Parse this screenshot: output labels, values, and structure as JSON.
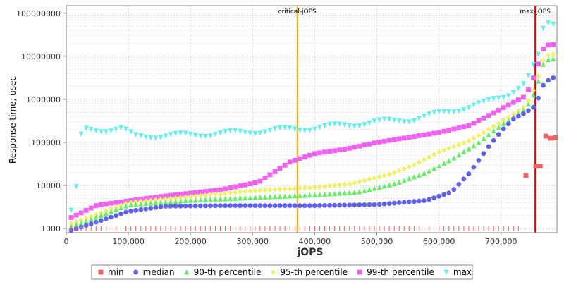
{
  "chart_data": {
    "type": "scatter",
    "xlabel": "jOPS",
    "ylabel": "Response time, usec",
    "log_y": true,
    "xlim": [
      0,
      790000
    ],
    "ylim": [
      800,
      150000000
    ],
    "x_ticks": [
      0,
      100000,
      200000,
      300000,
      400000,
      500000,
      600000,
      700000
    ],
    "x_tick_labels": [
      "0",
      "100,000",
      "200,000",
      "300,000",
      "400,000",
      "500,000",
      "600,000",
      "700,000"
    ],
    "y_ticks": [
      1000,
      10000,
      100000,
      1000000,
      10000000,
      100000000
    ],
    "y_tick_labels": [
      "1000",
      "10000",
      "100000",
      "1000000",
      "10000000",
      "100000000"
    ],
    "grid": true,
    "legend_position": "bottom",
    "vlines": [
      {
        "x": 372000,
        "label": "critical-jOPS",
        "color": "#ffb000"
      },
      {
        "x": 755000,
        "label": "max-jOPS",
        "color": "#e00000"
      }
    ],
    "series": [
      {
        "name": "min",
        "marker": "square",
        "color": "#f06060",
        "points": [
          [
            740000,
            17000
          ],
          [
            756000,
            28000
          ],
          [
            763000,
            28000
          ],
          [
            772000,
            140000
          ],
          [
            780000,
            125000
          ],
          [
            788000,
            128000
          ]
        ]
      },
      {
        "name": "median",
        "marker": "circle",
        "color": "#6060f0",
        "anchors": [
          [
            8000,
            900
          ],
          [
            100000,
            2500
          ],
          [
            160000,
            3300
          ],
          [
            250000,
            3400
          ],
          [
            400000,
            3400
          ],
          [
            500000,
            3600
          ],
          [
            580000,
            4500
          ],
          [
            620000,
            7000
          ],
          [
            650000,
            20000
          ],
          [
            680000,
            80000
          ],
          [
            700000,
            180000
          ],
          [
            720000,
            350000
          ],
          [
            740000,
            500000
          ],
          [
            755000,
            700000
          ],
          [
            770000,
            2500000
          ],
          [
            790000,
            3500000
          ]
        ]
      },
      {
        "name": "90-th percentile",
        "marker": "triangle-up",
        "color": "#60f060",
        "anchors": [
          [
            8000,
            1100
          ],
          [
            100000,
            3500
          ],
          [
            200000,
            4500
          ],
          [
            300000,
            5200
          ],
          [
            400000,
            6000
          ],
          [
            470000,
            7000
          ],
          [
            530000,
            11000
          ],
          [
            580000,
            20000
          ],
          [
            620000,
            40000
          ],
          [
            660000,
            90000
          ],
          [
            700000,
            250000
          ],
          [
            740000,
            600000
          ],
          [
            755000,
            1500000
          ],
          [
            770000,
            8000000
          ],
          [
            790000,
            9000000
          ]
        ]
      },
      {
        "name": "95-th percentile",
        "marker": "diamond",
        "color": "#f0f060",
        "anchors": [
          [
            8000,
            1300
          ],
          [
            100000,
            4000
          ],
          [
            200000,
            5500
          ],
          [
            300000,
            7500
          ],
          [
            400000,
            9000
          ],
          [
            460000,
            11000
          ],
          [
            520000,
            18000
          ],
          [
            560000,
            30000
          ],
          [
            600000,
            60000
          ],
          [
            650000,
            110000
          ],
          [
            700000,
            300000
          ],
          [
            740000,
            700000
          ],
          [
            755000,
            2000000
          ],
          [
            770000,
            10000000
          ],
          [
            790000,
            12000000
          ]
        ]
      },
      {
        "name": "99-th percentile",
        "marker": "square",
        "color": "#f060f0",
        "anchors": [
          [
            8000,
            1800
          ],
          [
            50000,
            3500
          ],
          [
            150000,
            5500
          ],
          [
            250000,
            8000
          ],
          [
            310000,
            12000
          ],
          [
            360000,
            35000
          ],
          [
            400000,
            55000
          ],
          [
            450000,
            70000
          ],
          [
            500000,
            100000
          ],
          [
            550000,
            130000
          ],
          [
            600000,
            170000
          ],
          [
            650000,
            250000
          ],
          [
            700000,
            600000
          ],
          [
            740000,
            1200000
          ],
          [
            755000,
            4000000
          ],
          [
            770000,
            18000000
          ],
          [
            790000,
            19000000
          ]
        ]
      },
      {
        "name": "max",
        "marker": "triangle-down",
        "color": "#60f0f0",
        "anchors": [
          [
            8000,
            2500
          ],
          [
            15000,
            6000
          ],
          [
            25000,
            200000
          ],
          [
            60000,
            200000
          ],
          [
            90000,
            210000
          ],
          [
            110000,
            140000
          ],
          [
            200000,
            150000
          ],
          [
            300000,
            180000
          ],
          [
            400000,
            220000
          ],
          [
            500000,
            300000
          ],
          [
            560000,
            350000
          ],
          [
            620000,
            550000
          ],
          [
            670000,
            800000
          ],
          [
            710000,
            1300000
          ],
          [
            740000,
            2500000
          ],
          [
            760000,
            10000000
          ],
          [
            770000,
            60000000
          ],
          [
            790000,
            60000000
          ]
        ]
      }
    ]
  }
}
